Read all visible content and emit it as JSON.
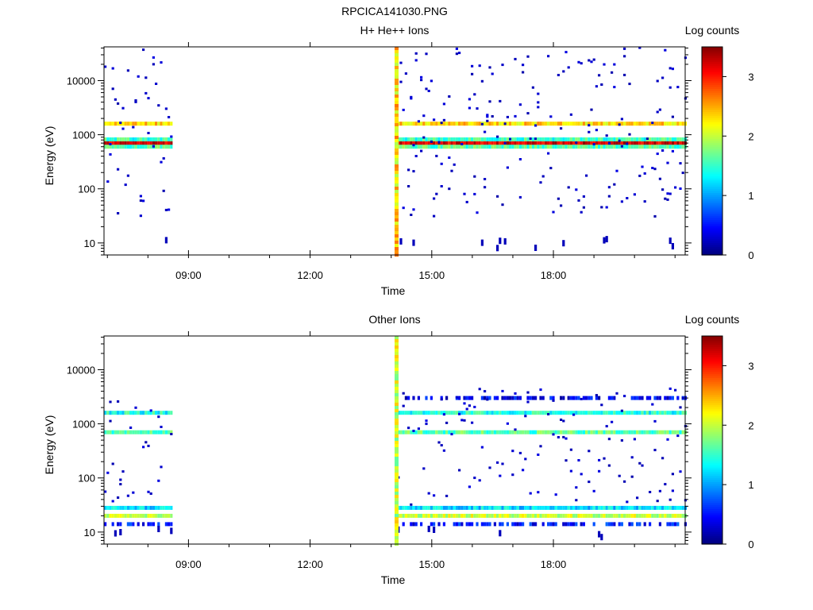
{
  "figure": {
    "title": "RPCICA141030.PNG"
  },
  "colorbar": {
    "label": "Log counts",
    "min": 0,
    "max": 3.5,
    "ticks": [
      "0",
      "1",
      "2",
      "3"
    ]
  },
  "chart_data": [
    {
      "type": "heatmap",
      "title": "H+ He++ Ions",
      "xlabel": "Time",
      "ylabel": "Energy (eV)",
      "y_scale": "log",
      "ylim": [
        6,
        42000
      ],
      "xlim": [
        "06:55",
        "21:15"
      ],
      "x_ticks": [
        "09:00",
        "12:00",
        "15:00",
        "18:00"
      ],
      "y_ticks": [
        "10",
        "100",
        "1000",
        "10000"
      ],
      "data_intervals": [
        [
          "06:55",
          "08:35"
        ],
        [
          "14:05",
          "21:15"
        ]
      ],
      "bands": [
        {
          "energy_eV": 700,
          "log_counts": 3.2,
          "interval": "all"
        },
        {
          "energy_eV": 1600,
          "log_counts": 2.3,
          "interval": "all"
        },
        {
          "energy_eV": 600,
          "log_counts": 1.6,
          "interval": "all"
        },
        {
          "energy_eV": 820,
          "log_counts": 1.5,
          "interval": "all"
        }
      ],
      "background": "sparse single counts (log counts ≈ 0.2) across 30 eV – 40 keV",
      "vertical_stripe": {
        "time": "14:05",
        "log_counts": 2.3
      }
    },
    {
      "type": "heatmap",
      "title": "Other Ions",
      "xlabel": "Time",
      "ylabel": "Energy (eV)",
      "y_scale": "log",
      "ylim": [
        6,
        42000
      ],
      "xlim": [
        "06:55",
        "21:15"
      ],
      "x_ticks": [
        "09:00",
        "12:00",
        "15:00",
        "18:00"
      ],
      "y_ticks": [
        "10",
        "100",
        "1000",
        "10000"
      ],
      "data_intervals": [
        [
          "06:55",
          "08:35"
        ],
        [
          "14:05",
          "21:15"
        ]
      ],
      "bands": [
        {
          "energy_eV": 1600,
          "log_counts": 1.4,
          "interval": "all"
        },
        {
          "energy_eV": 700,
          "log_counts": 1.6,
          "interval": "all"
        },
        {
          "energy_eV": 3000,
          "log_counts": 0.4,
          "interval": "second"
        },
        {
          "energy_eV": 20,
          "log_counts": 2.0,
          "interval": "all"
        },
        {
          "energy_eV": 28,
          "log_counts": 1.2,
          "interval": "all"
        },
        {
          "energy_eV": 14,
          "log_counts": 0.5,
          "interval": "all"
        }
      ],
      "background": "sparse single counts (log counts ≈ 0.2) across 30 eV – 4 keV",
      "vertical_stripe": {
        "time": "14:05",
        "log_counts": 2.0
      }
    }
  ]
}
